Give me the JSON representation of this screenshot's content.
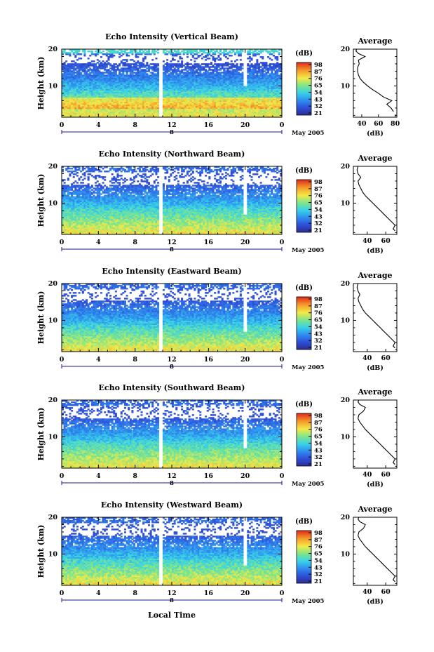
{
  "common": {
    "ylabel": "Height (km)",
    "xlabel": "Local Time",
    "date_suffix": "May 2005",
    "date_mark": "8",
    "colorbar_unit": "(dB)",
    "colorbar_ticks": [
      "98",
      "87",
      "76",
      "65",
      "54",
      "43",
      "32",
      "21"
    ],
    "average_title": "Average",
    "average_xlabel": "(dB)",
    "colors": {
      "dark_blue": "#2b2fa0",
      "blue": "#2f5fe6",
      "cyan": "#3fd7e0",
      "green": "#7fe38a",
      "yellow": "#f6e84a",
      "orange": "#f59a2d",
      "red": "#e23a1f"
    }
  },
  "chart_data": [
    {
      "type": "heatmap",
      "title": "Echo Intensity (Vertical Beam)",
      "x_ticks": [
        "0",
        "4",
        "8",
        "12",
        "16",
        "20",
        "0"
      ],
      "y_ticks": [
        "20",
        "10"
      ],
      "xlim": [
        0,
        24
      ],
      "ylim": [
        1.5,
        20
      ],
      "gap_hours": [
        10.6,
        11.1
      ],
      "missing_column_hour": 20.0,
      "profile_top_km": 16.2,
      "average": {
        "x_ticks": [
          "40",
          "60",
          "80"
        ],
        "xlim": [
          30,
          82
        ],
        "y_ticks": [
          "20",
          "10"
        ],
        "ylim": [
          1.5,
          20
        ],
        "profile": [
          [
            3,
            78
          ],
          [
            4,
            75
          ],
          [
            5,
            70
          ],
          [
            6,
            76
          ],
          [
            7,
            66
          ],
          [
            8,
            60
          ],
          [
            9,
            53
          ],
          [
            10,
            47
          ],
          [
            11,
            42
          ],
          [
            12,
            38
          ],
          [
            13,
            36
          ],
          [
            14,
            35
          ],
          [
            15,
            35
          ],
          [
            16,
            37
          ],
          [
            17,
            36
          ],
          [
            18,
            44
          ],
          [
            18.8,
            36
          ],
          [
            19.5,
            33
          ],
          [
            20,
            34
          ]
        ]
      }
    },
    {
      "type": "heatmap",
      "title": "Echo Intensity (Northward Beam)",
      "x_ticks": [
        "0",
        "4",
        "8",
        "12",
        "16",
        "20",
        "0"
      ],
      "y_ticks": [
        "20",
        "10"
      ],
      "xlim": [
        0,
        24
      ],
      "ylim": [
        1.5,
        20
      ],
      "gap_hours": [
        10.6,
        11.1
      ],
      "missing_column_hour": 20.0,
      "profile_top_km": 15.0,
      "average": {
        "x_ticks": [
          "40",
          "60"
        ],
        "xlim": [
          25,
          72
        ],
        "y_ticks": [
          "20",
          "10"
        ],
        "ylim": [
          1.5,
          20
        ],
        "profile": [
          [
            2.5,
            70
          ],
          [
            3,
            68
          ],
          [
            4,
            70
          ],
          [
            5,
            66
          ],
          [
            6,
            62
          ],
          [
            7,
            58
          ],
          [
            8,
            54
          ],
          [
            9,
            50
          ],
          [
            10,
            46
          ],
          [
            11,
            42
          ],
          [
            12,
            38
          ],
          [
            13,
            35
          ],
          [
            14,
            33
          ],
          [
            15,
            31
          ],
          [
            16,
            30
          ],
          [
            17,
            33
          ],
          [
            18,
            30
          ],
          [
            19,
            29
          ],
          [
            20,
            30
          ]
        ]
      }
    },
    {
      "type": "heatmap",
      "title": "Echo Intensity (Eastward Beam)",
      "x_ticks": [
        "0",
        "4",
        "8",
        "12",
        "16",
        "20",
        "0"
      ],
      "y_ticks": [
        "20",
        "10"
      ],
      "xlim": [
        0,
        24
      ],
      "ylim": [
        1.5,
        20
      ],
      "gap_hours": [
        10.6,
        11.1
      ],
      "missing_column_hour": 20.0,
      "profile_top_km": 15.5,
      "average": {
        "x_ticks": [
          "40",
          "60"
        ],
        "xlim": [
          25,
          72
        ],
        "y_ticks": [
          "20",
          "10"
        ],
        "ylim": [
          1.5,
          20
        ],
        "profile": [
          [
            2.5,
            70
          ],
          [
            3,
            68
          ],
          [
            4,
            70
          ],
          [
            5,
            66
          ],
          [
            6,
            62
          ],
          [
            7,
            58
          ],
          [
            8,
            54
          ],
          [
            9,
            50
          ],
          [
            10,
            46
          ],
          [
            11,
            42
          ],
          [
            12,
            38
          ],
          [
            13,
            35
          ],
          [
            14,
            33
          ],
          [
            15,
            31
          ],
          [
            16,
            30
          ],
          [
            17,
            32
          ],
          [
            18,
            30
          ],
          [
            19,
            29
          ],
          [
            20,
            30
          ]
        ]
      }
    },
    {
      "type": "heatmap",
      "title": "Echo Intensity (Southward Beam)",
      "x_ticks": [
        "0",
        "4",
        "8",
        "12",
        "16",
        "20",
        "0"
      ],
      "y_ticks": [
        "20",
        "10"
      ],
      "xlim": [
        0,
        24
      ],
      "ylim": [
        1.5,
        20
      ],
      "gap_hours": [
        10.6,
        11.1
      ],
      "missing_column_hour": 20.0,
      "profile_top_km": 15.0,
      "average": {
        "x_ticks": [
          "40",
          "60"
        ],
        "xlim": [
          25,
          72
        ],
        "y_ticks": [
          "20",
          "10"
        ],
        "ylim": [
          1.5,
          20
        ],
        "profile": [
          [
            2.5,
            70
          ],
          [
            3,
            68
          ],
          [
            4,
            70
          ],
          [
            5,
            66
          ],
          [
            6,
            62
          ],
          [
            7,
            58
          ],
          [
            8,
            54
          ],
          [
            9,
            50
          ],
          [
            10,
            46
          ],
          [
            11,
            42
          ],
          [
            12,
            38
          ],
          [
            13,
            35
          ],
          [
            14,
            32
          ],
          [
            15,
            30
          ],
          [
            16,
            31
          ],
          [
            17,
            36
          ],
          [
            18,
            38
          ],
          [
            18.8,
            32
          ],
          [
            19.5,
            30
          ],
          [
            20,
            31
          ]
        ]
      }
    },
    {
      "type": "heatmap",
      "title": "Echo Intensity (Westward Beam)",
      "x_ticks": [
        "0",
        "4",
        "8",
        "12",
        "16",
        "20",
        "0"
      ],
      "y_ticks": [
        "20",
        "10"
      ],
      "xlim": [
        0,
        24
      ],
      "ylim": [
        1.5,
        20
      ],
      "gap_hours": [
        10.6,
        11.1
      ],
      "missing_column_hour": 20.0,
      "profile_top_km": 15.0,
      "average": {
        "x_ticks": [
          "40",
          "60"
        ],
        "xlim": [
          25,
          72
        ],
        "y_ticks": [
          "20",
          "10"
        ],
        "ylim": [
          1.5,
          20
        ],
        "profile": [
          [
            2.5,
            70
          ],
          [
            3,
            68
          ],
          [
            4,
            70
          ],
          [
            5,
            66
          ],
          [
            6,
            62
          ],
          [
            7,
            58
          ],
          [
            8,
            54
          ],
          [
            9,
            50
          ],
          [
            10,
            46
          ],
          [
            11,
            42
          ],
          [
            12,
            38
          ],
          [
            13,
            35
          ],
          [
            14,
            32
          ],
          [
            15,
            30
          ],
          [
            16,
            31
          ],
          [
            17,
            36
          ],
          [
            18,
            38
          ],
          [
            18.8,
            32
          ],
          [
            19.5,
            30
          ],
          [
            20,
            31
          ]
        ]
      }
    }
  ]
}
